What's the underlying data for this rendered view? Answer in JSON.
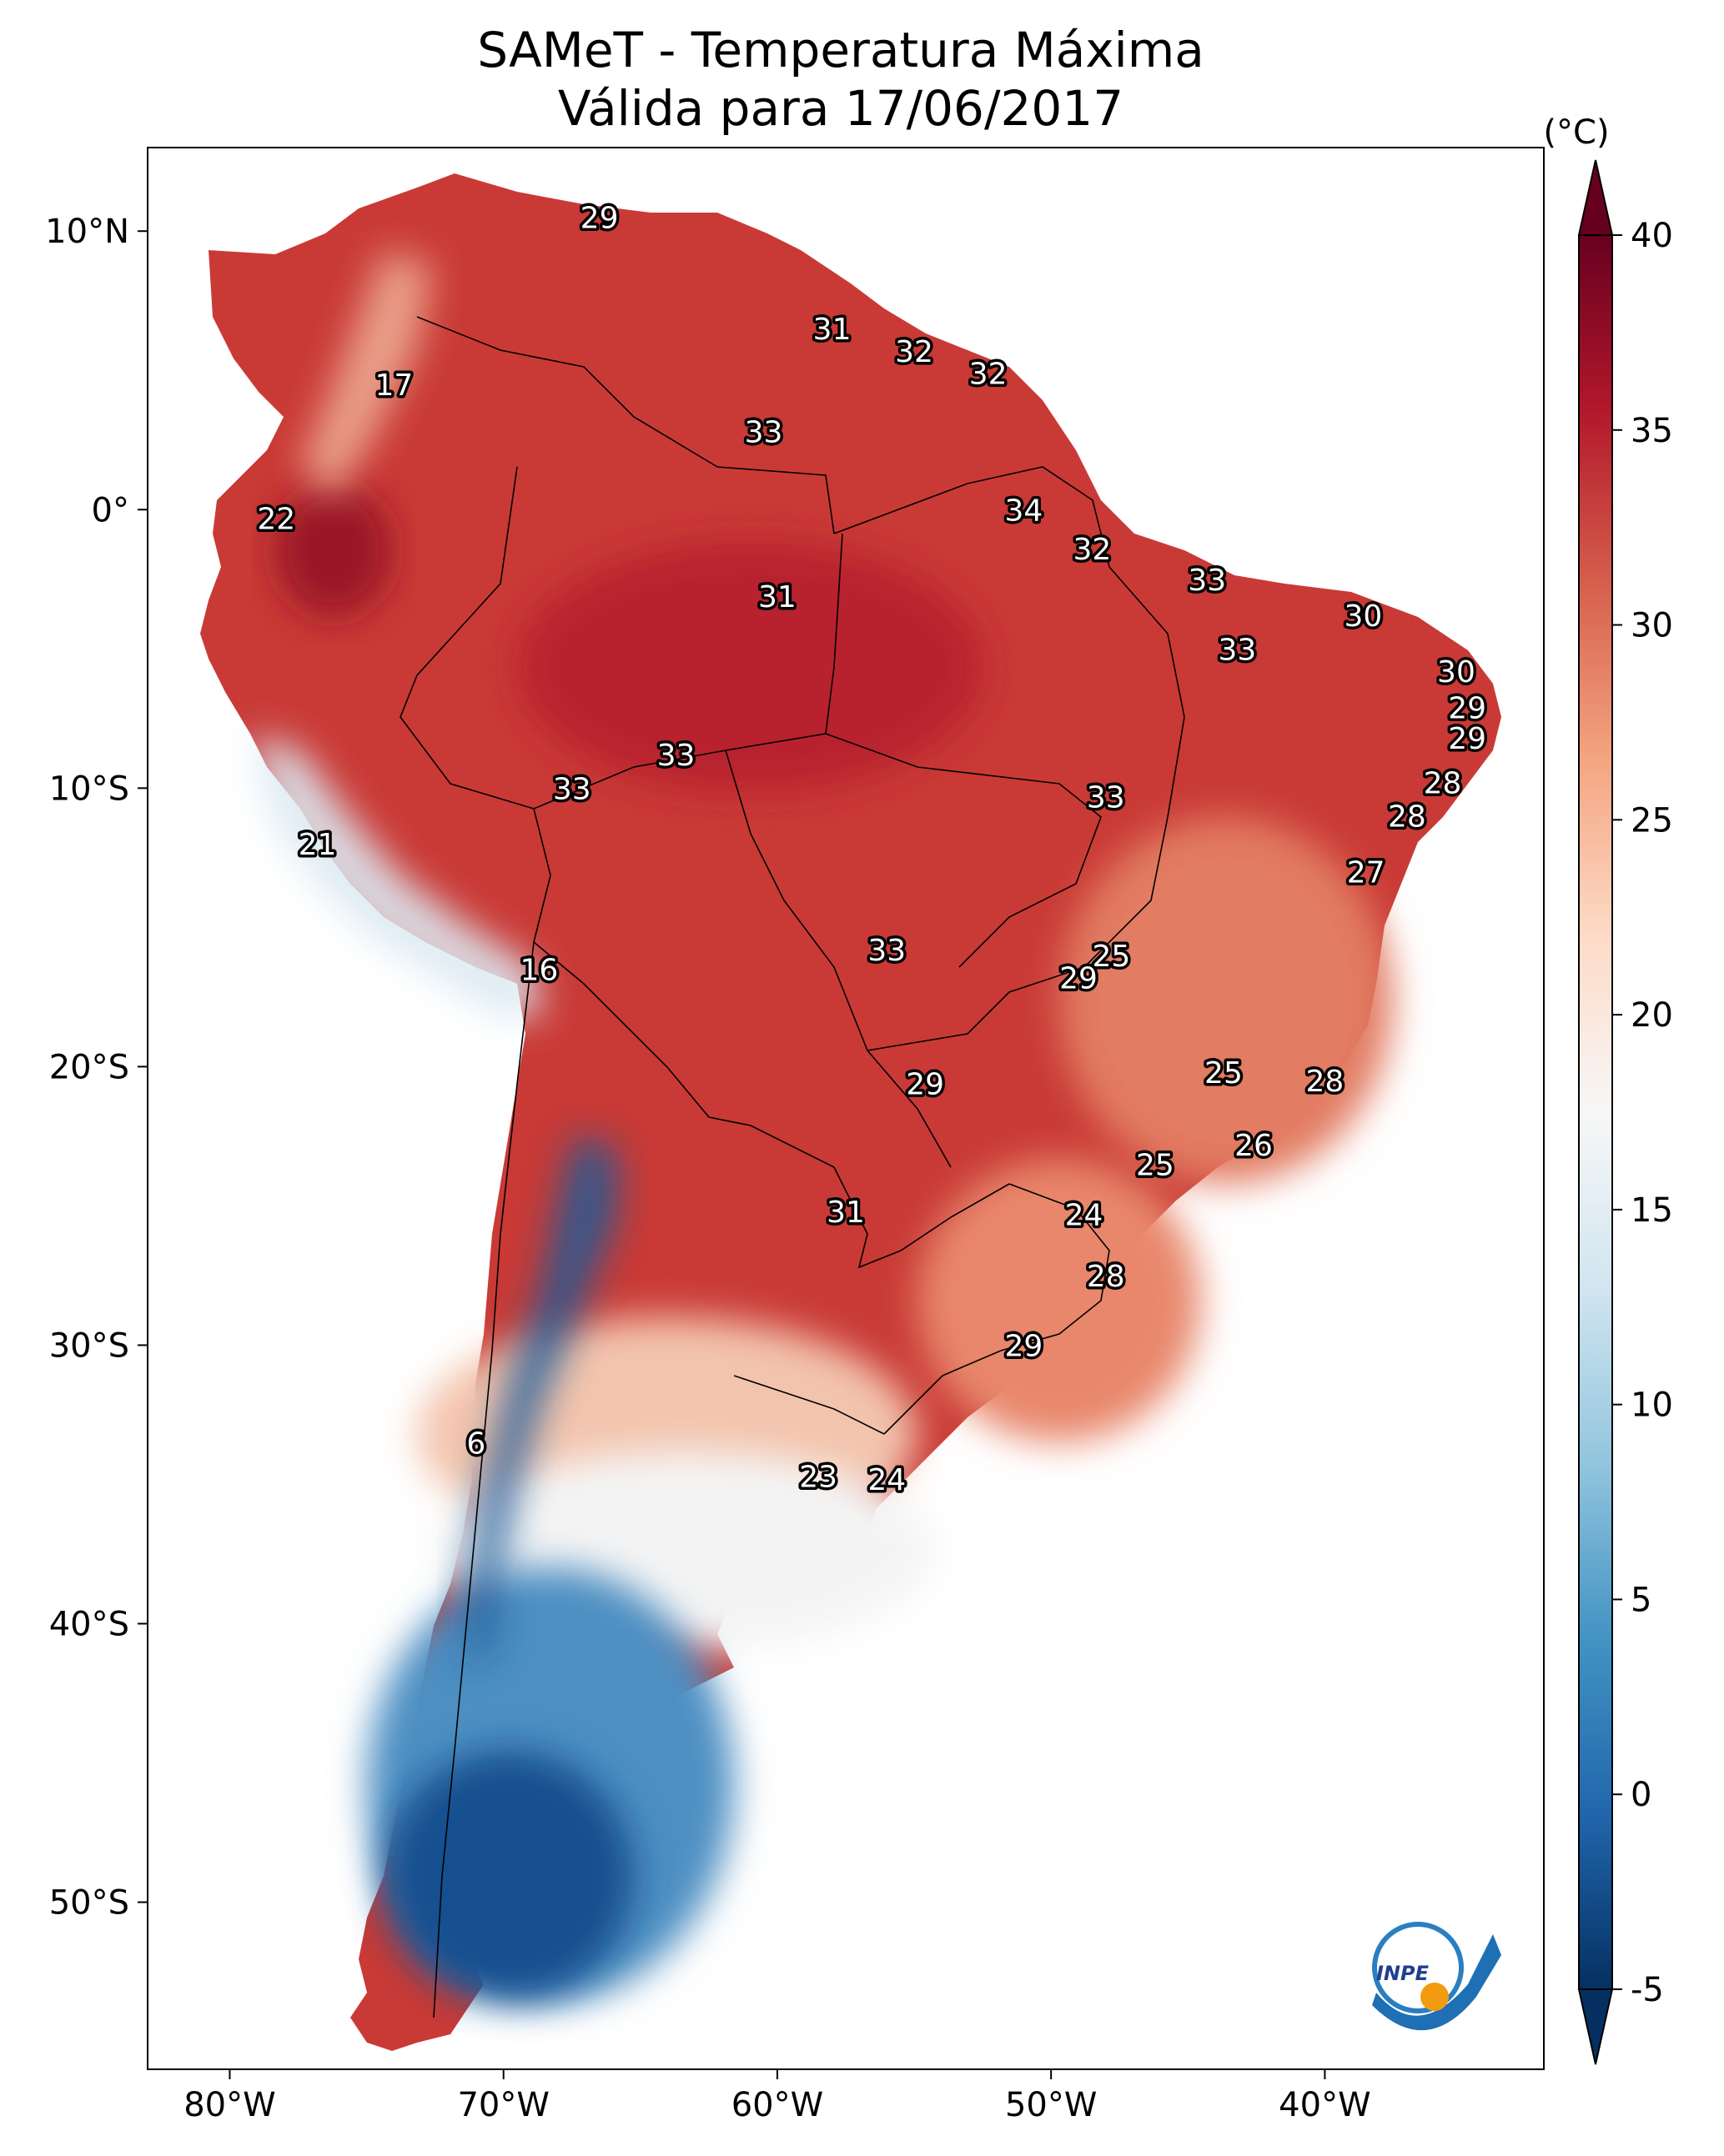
{
  "title_line1": "SAMeT - Temperatura Máxima",
  "title_line2": "Válida para 17/06/2017",
  "colorbar": {
    "unit": "(°C)",
    "min": -5,
    "max": 40,
    "ticks": [
      "40",
      "35",
      "30",
      "25",
      "20",
      "15",
      "10",
      "5",
      "0",
      "-5"
    ],
    "colors": [
      "#053061",
      "#2166ac",
      "#4393c3",
      "#92c5de",
      "#d1e5f0",
      "#f7f7f7",
      "#fddbc7",
      "#f4a582",
      "#d6604d",
      "#b2182b",
      "#67001f"
    ]
  },
  "axes": {
    "lon_ticks": [
      "80°W",
      "70°W",
      "60°W",
      "50°W",
      "40°W"
    ],
    "lat_ticks": [
      "10°N",
      "0°",
      "10°S",
      "20°S",
      "30°S",
      "40°S",
      "50°S"
    ]
  },
  "logo_text": "INPE",
  "labels": [
    {
      "v": "29",
      "lon": -66.5,
      "lat": 10.5
    },
    {
      "v": "17",
      "lon": -74.0,
      "lat": 4.5
    },
    {
      "v": "31",
      "lon": -58.0,
      "lat": 6.5
    },
    {
      "v": "32",
      "lon": -55.0,
      "lat": 5.7
    },
    {
      "v": "32",
      "lon": -52.3,
      "lat": 4.9
    },
    {
      "v": "33",
      "lon": -60.5,
      "lat": 2.8
    },
    {
      "v": "22",
      "lon": -78.3,
      "lat": -0.3
    },
    {
      "v": "34",
      "lon": -51.0,
      "lat": 0.0
    },
    {
      "v": "32",
      "lon": -48.5,
      "lat": -1.4
    },
    {
      "v": "33",
      "lon": -44.3,
      "lat": -2.5
    },
    {
      "v": "31",
      "lon": -60.0,
      "lat": -3.1
    },
    {
      "v": "30",
      "lon": -38.6,
      "lat": -3.8
    },
    {
      "v": "33",
      "lon": -43.2,
      "lat": -5.0
    },
    {
      "v": "30",
      "lon": -35.2,
      "lat": -5.8
    },
    {
      "v": "29",
      "lon": -34.8,
      "lat": -7.1
    },
    {
      "v": "29",
      "lon": -34.8,
      "lat": -8.2
    },
    {
      "v": "33",
      "lon": -63.7,
      "lat": -8.8
    },
    {
      "v": "33",
      "lon": -67.5,
      "lat": -10.0
    },
    {
      "v": "33",
      "lon": -48.0,
      "lat": -10.3
    },
    {
      "v": "28",
      "lon": -35.7,
      "lat": -9.8
    },
    {
      "v": "28",
      "lon": -37.0,
      "lat": -11.0
    },
    {
      "v": "21",
      "lon": -76.8,
      "lat": -12.0
    },
    {
      "v": "27",
      "lon": -38.5,
      "lat": -13.0
    },
    {
      "v": "33",
      "lon": -56.0,
      "lat": -15.8
    },
    {
      "v": "25",
      "lon": -47.8,
      "lat": -16.0
    },
    {
      "v": "29",
      "lon": -49.0,
      "lat": -16.8
    },
    {
      "v": "16",
      "lon": -68.7,
      "lat": -16.5
    },
    {
      "v": "25",
      "lon": -43.7,
      "lat": -20.2
    },
    {
      "v": "28",
      "lon": -40.0,
      "lat": -20.5
    },
    {
      "v": "29",
      "lon": -54.6,
      "lat": -20.6
    },
    {
      "v": "26",
      "lon": -42.6,
      "lat": -22.8
    },
    {
      "v": "25",
      "lon": -46.2,
      "lat": -23.5
    },
    {
      "v": "31",
      "lon": -57.5,
      "lat": -25.2
    },
    {
      "v": "24",
      "lon": -48.8,
      "lat": -25.3
    },
    {
      "v": "28",
      "lon": -48.0,
      "lat": -27.5
    },
    {
      "v": "29",
      "lon": -51.0,
      "lat": -30.0
    },
    {
      "v": "6",
      "lon": -71.0,
      "lat": -33.5
    },
    {
      "v": "23",
      "lon": -58.5,
      "lat": -34.7
    },
    {
      "v": "24",
      "lon": -56.0,
      "lat": -34.8
    }
  ]
}
